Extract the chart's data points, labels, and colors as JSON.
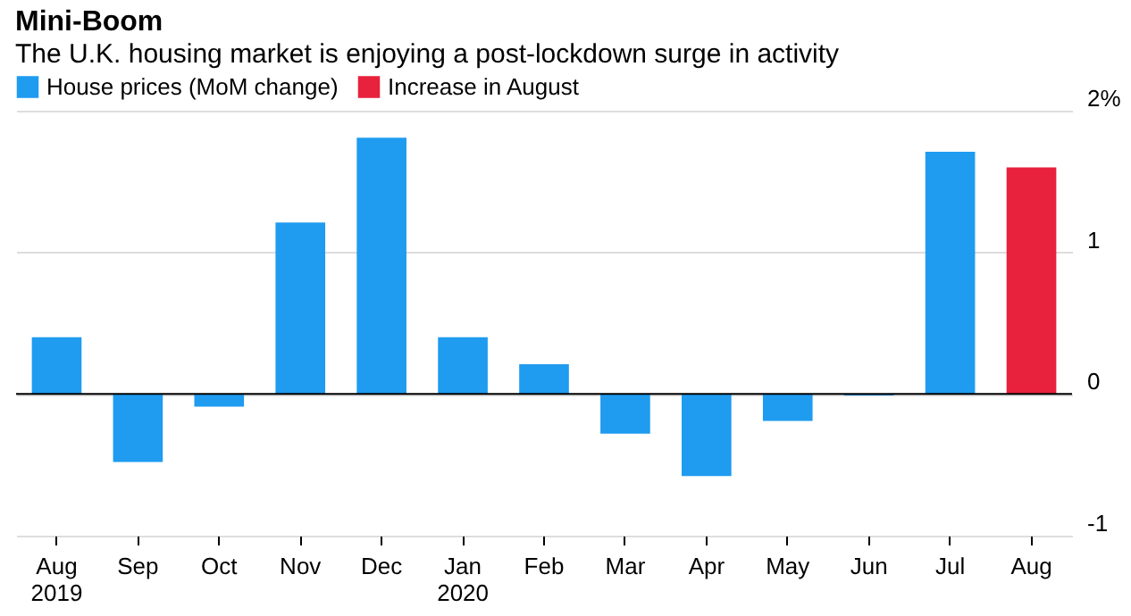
{
  "chart_data": {
    "type": "bar",
    "title": "Mini-Boom",
    "subtitle": "The U.K. housing market is enjoying a post-lockdown surge in activity",
    "categories": [
      "Aug 2019",
      "Sep",
      "Oct",
      "Nov",
      "Dec",
      "Jan 2020",
      "Feb",
      "Mar",
      "Apr",
      "May",
      "Jun",
      "Jul",
      "Aug"
    ],
    "series": [
      {
        "name": "House prices (MoM change)",
        "color": "#1f9bf0",
        "values": [
          0.4,
          -0.48,
          -0.09,
          1.21,
          1.81,
          0.4,
          0.21,
          -0.28,
          -0.58,
          -0.19,
          -0.01,
          1.71,
          null
        ]
      },
      {
        "name": "Increase in August",
        "color": "#e8213c",
        "values": [
          null,
          null,
          null,
          null,
          null,
          null,
          null,
          null,
          null,
          null,
          null,
          null,
          1.6
        ]
      }
    ],
    "ylim": [
      -1,
      2
    ],
    "yticks": [
      -1,
      0,
      1,
      {
        "value": 2,
        "label": "2%"
      }
    ],
    "grid": "y",
    "legend": "top left"
  }
}
